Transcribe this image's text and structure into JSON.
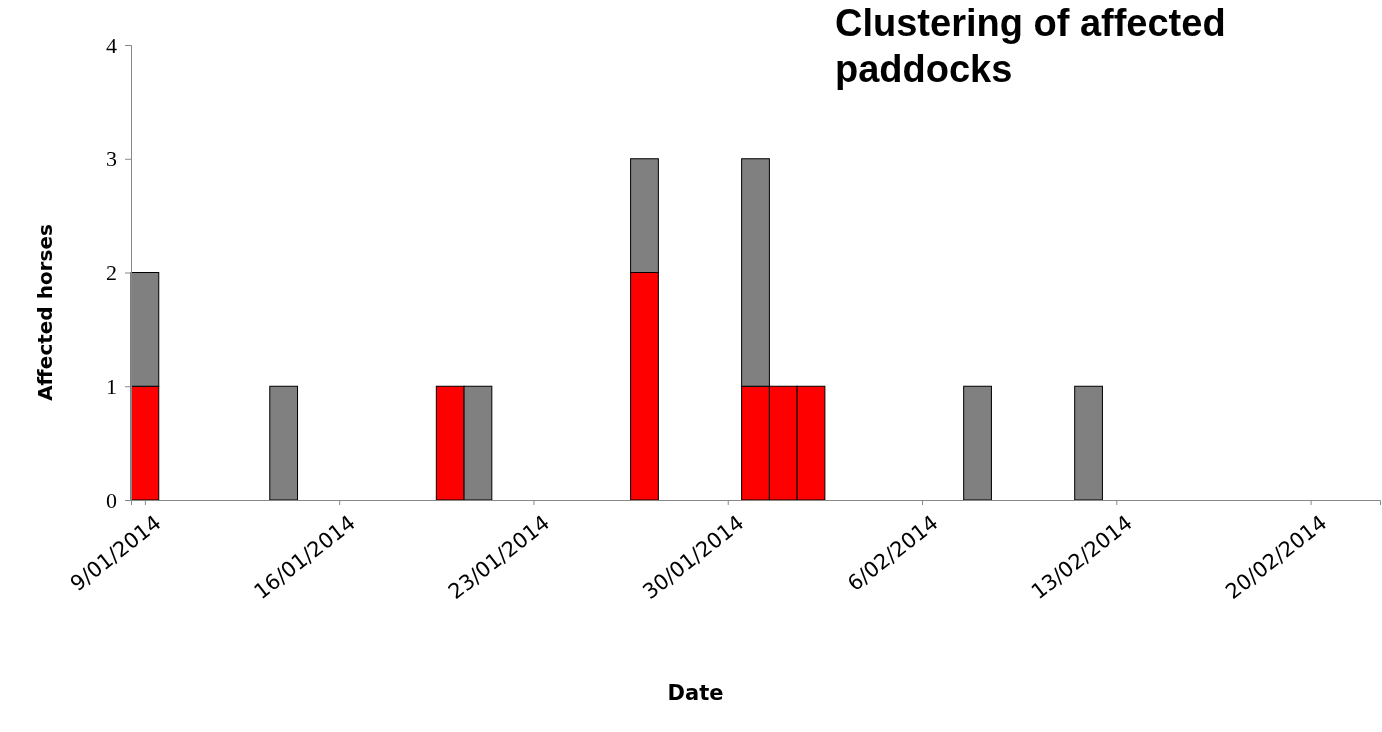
{
  "chart_data": {
    "type": "bar",
    "stacked": true,
    "title": "Clustering of affected paddocks",
    "xlabel": "Date",
    "ylabel": "Affected horses",
    "x": [
      "2014-01-09",
      "2014-01-14",
      "2014-01-20",
      "2014-01-21",
      "2014-01-27",
      "2014-01-31",
      "2014-02-01",
      "2014-02-02",
      "2014-02-08",
      "2014-02-12"
    ],
    "series": [
      {
        "color": "#ff0000",
        "values": [
          1,
          0,
          1,
          0,
          2,
          1,
          1,
          1,
          0,
          0
        ]
      },
      {
        "color": "#808080",
        "values": [
          1,
          1,
          0,
          1,
          1,
          2,
          0,
          0,
          1,
          1
        ]
      }
    ],
    "xlim": [
      "2014-01-08T12:00",
      "2014-02-22T12:00"
    ],
    "xticks": [
      {
        "value": "2014-01-09",
        "label": "9/01/2014"
      },
      {
        "value": "2014-01-16",
        "label": "16/01/2014"
      },
      {
        "value": "2014-01-23",
        "label": "23/01/2014"
      },
      {
        "value": "2014-01-30",
        "label": "30/01/2014"
      },
      {
        "value": "2014-02-06",
        "label": "6/02/2014"
      },
      {
        "value": "2014-02-13",
        "label": "13/02/2014"
      },
      {
        "value": "2014-02-20",
        "label": "20/02/2014"
      }
    ],
    "ylim": [
      0,
      4
    ],
    "yticks": [
      0,
      1,
      2,
      3,
      4
    ]
  }
}
